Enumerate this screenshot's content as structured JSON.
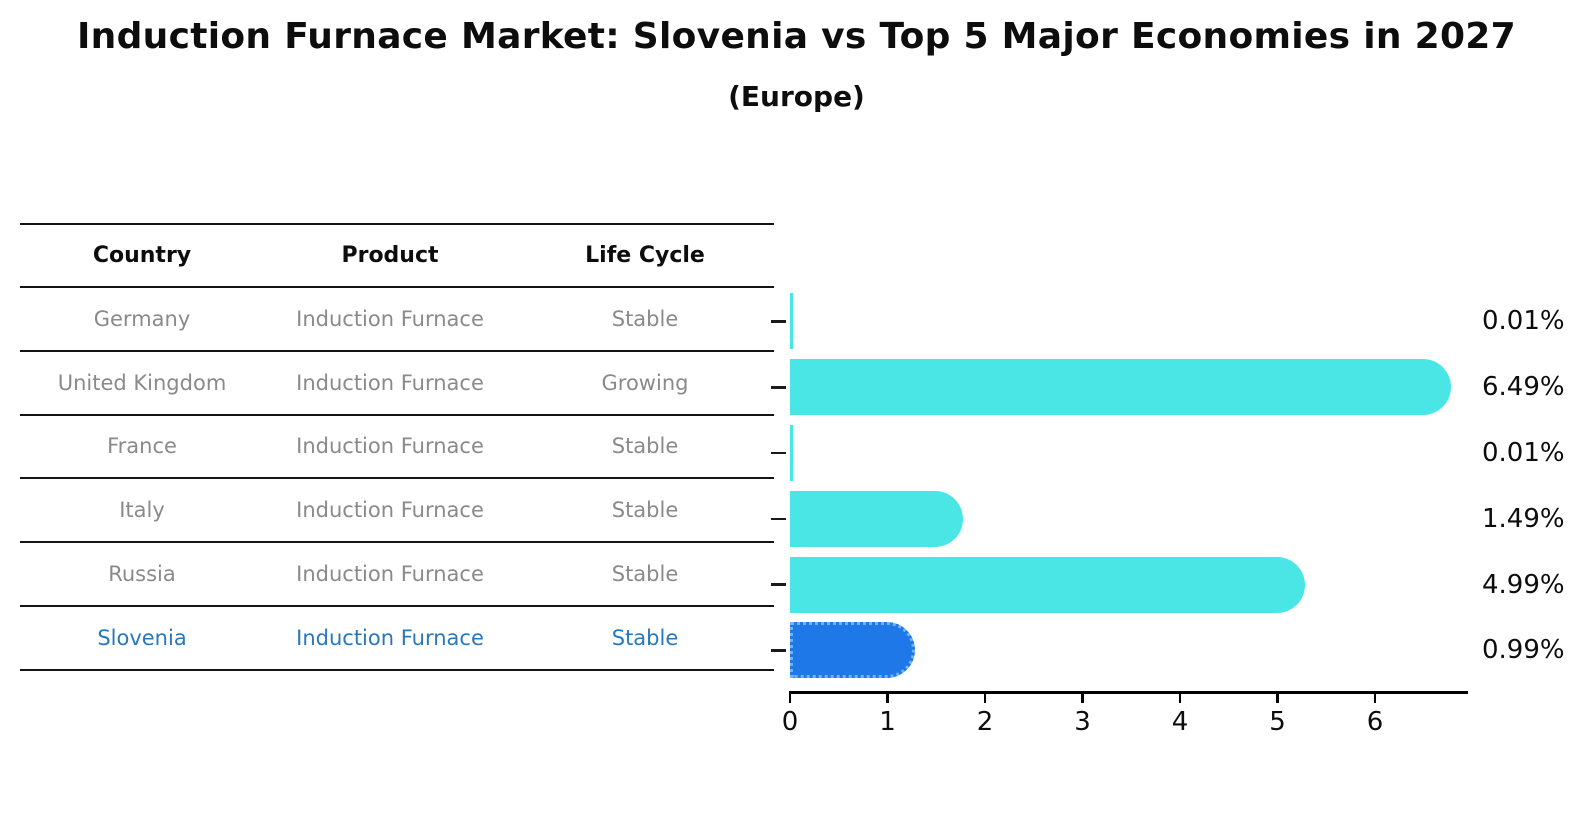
{
  "title": "Induction Furnace Market: Slovenia vs Top 5 Major Economies in 2027",
  "subtitle": "(Europe)",
  "table": {
    "headers": [
      "Country",
      "Product",
      "Life Cycle"
    ],
    "rows": [
      {
        "country": "Germany",
        "product": "Induction Furnace",
        "life_cycle": "Stable",
        "highlight": false
      },
      {
        "country": "United Kingdom",
        "product": "Induction Furnace",
        "life_cycle": "Growing",
        "highlight": false
      },
      {
        "country": "France",
        "product": "Induction Furnace",
        "life_cycle": "Stable",
        "highlight": false
      },
      {
        "country": "Italy",
        "product": "Induction Furnace",
        "life_cycle": "Stable",
        "highlight": false
      },
      {
        "country": "Russia",
        "product": "Induction Furnace",
        "life_cycle": "Stable",
        "highlight": false
      },
      {
        "country": "Slovenia",
        "product": "Induction Furnace",
        "life_cycle": "Stable",
        "highlight": true
      }
    ],
    "row_text_color": "#8a8a8a",
    "highlight_text_color": "#2878BE"
  },
  "chart_data": {
    "type": "bar",
    "orientation": "horizontal",
    "title": "Induction Furnace Market: Slovenia vs Top 5 Major Economies in 2027",
    "subtitle": "(Europe)",
    "categories": [
      "Germany",
      "United Kingdom",
      "France",
      "Italy",
      "Russia",
      "Slovenia"
    ],
    "values": [
      0.01,
      6.49,
      0.01,
      1.49,
      4.99,
      0.99
    ],
    "value_labels": [
      "0.01%",
      "6.49%",
      "0.01%",
      "1.49%",
      "4.99%",
      "0.99%"
    ],
    "xticks": [
      "0",
      "1",
      "2",
      "3",
      "4",
      "5",
      "6"
    ],
    "xlim": [
      0,
      6.95
    ],
    "grid": false,
    "legend": false,
    "bar_color": "#4AE6E6",
    "highlight_index": 5,
    "highlight_bar_color": "#1E78E8",
    "highlight_border_color": "#74B2F4",
    "axis_color": "#000000",
    "value_label_color": "#0d0d0d"
  }
}
